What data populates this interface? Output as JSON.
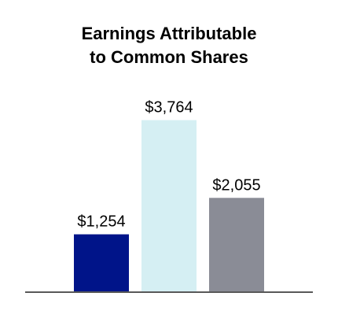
{
  "chart_data": {
    "type": "bar",
    "title_lines": [
      "Earnings Attributable",
      "to Common Shares"
    ],
    "categories": [
      "",
      "",
      ""
    ],
    "values": [
      1254,
      3764,
      2055
    ],
    "data_labels": [
      "$1,254",
      "$3,764",
      "$2,055"
    ],
    "colors": [
      "#001489",
      "#d5eff3",
      "#8a8c96"
    ],
    "axis_color": "#595959",
    "ylim": [
      0,
      4500
    ],
    "grid": false,
    "legend": "none"
  }
}
